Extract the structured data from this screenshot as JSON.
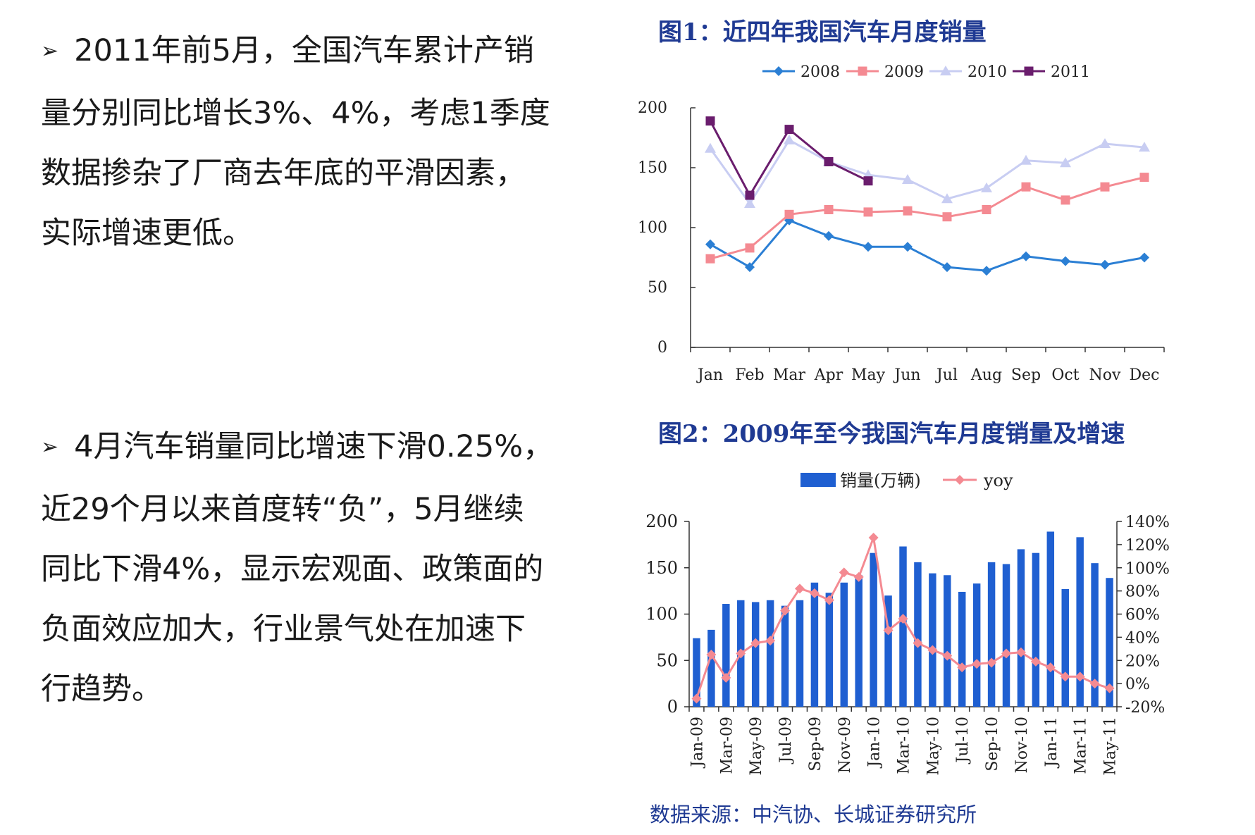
{
  "bullets": [
    {
      "mark": "➢",
      "lines": [
        "2011年前5月，全国汽车累计产销",
        "量分别同比增长3%、4%，考虑1季度",
        "数据掺杂了厂商去年底的平滑因素，",
        "实际增速更低。"
      ]
    },
    {
      "mark": "➢",
      "lines": [
        "4月汽车销量同比增速下滑0.25%，",
        "近29个月以来首度转“负”，5月继续",
        "同比下滑4%，显示宏观面、政策面的",
        "负面效应加大，行业景气处在加速下",
        "行趋势。"
      ]
    }
  ],
  "source_note": "数据来源：中汽协、长城证券研究所",
  "chart_data": [
    {
      "type": "line",
      "title": "图1：近四年我国汽车月度销量",
      "categories": [
        "Jan",
        "Feb",
        "Mar",
        "Apr",
        "May",
        "Jun",
        "Jul",
        "Aug",
        "Sep",
        "Oct",
        "Nov",
        "Dec"
      ],
      "ylim": [
        0,
        200
      ],
      "yticks": [
        0,
        50,
        100,
        150,
        200
      ],
      "legend_position": "top",
      "grid": false,
      "series": [
        {
          "name": "2008",
          "color": "#2b7fd4",
          "marker": "diamond",
          "values": [
            86,
            67,
            106,
            93,
            84,
            84,
            67,
            64,
            76,
            72,
            69,
            75
          ]
        },
        {
          "name": "2009",
          "color": "#f48a92",
          "marker": "square",
          "values": [
            74,
            83,
            111,
            115,
            113,
            114,
            109,
            115,
            134,
            123,
            134,
            142
          ]
        },
        {
          "name": "2010",
          "color": "#c8cdf2",
          "marker": "triangle",
          "values": [
            166,
            120,
            173,
            155,
            144,
            140,
            124,
            133,
            156,
            154,
            170,
            167
          ]
        },
        {
          "name": "2011",
          "color": "#6a1d6d",
          "marker": "square",
          "values": [
            189,
            127,
            182,
            155,
            139,
            null,
            null,
            null,
            null,
            null,
            null,
            null
          ]
        }
      ]
    },
    {
      "type": "bar",
      "title": "图2：2009年至今我国汽车月度销量及增速",
      "categories": [
        "Jan-09",
        "Feb-09",
        "Mar-09",
        "Apr-09",
        "May-09",
        "Jun-09",
        "Jul-09",
        "Aug-09",
        "Sep-09",
        "Oct-09",
        "Nov-09",
        "Dec-09",
        "Jan-10",
        "Feb-10",
        "Mar-10",
        "Apr-10",
        "May-10",
        "Jun-10",
        "Jul-10",
        "Aug-10",
        "Sep-10",
        "Oct-10",
        "Nov-10",
        "Dec-10",
        "Jan-11",
        "Feb-11",
        "Mar-11",
        "Apr-11",
        "May-11"
      ],
      "tick_labels": [
        "Jan-09",
        "Mar-09",
        "May-09",
        "Jul-09",
        "Sep-09",
        "Nov-09",
        "Jan-10",
        "Mar-10",
        "May-10",
        "Jul-10",
        "Sep-10",
        "Nov-10",
        "Jan-11",
        "Mar-11",
        "May-11"
      ],
      "ylim_left": [
        0,
        200
      ],
      "yticks_left": [
        0,
        50,
        100,
        150,
        200
      ],
      "ylim_right": [
        -20,
        140
      ],
      "yticks_right": [
        "-20%",
        "0%",
        "20%",
        "40%",
        "60%",
        "80%",
        "100%",
        "120%",
        "140%"
      ],
      "yticks_right_values": [
        -20,
        0,
        20,
        40,
        60,
        80,
        100,
        120,
        140
      ],
      "legend_position": "top",
      "series": [
        {
          "name": "销量(万辆)",
          "kind": "bar",
          "axis": "left",
          "color": "#1f5fd1",
          "values": [
            74,
            83,
            111,
            115,
            113,
            115,
            109,
            115,
            134,
            123,
            134,
            142,
            166,
            120,
            173,
            156,
            144,
            142,
            124,
            133,
            156,
            154,
            170,
            166,
            189,
            127,
            183,
            155,
            139
          ]
        },
        {
          "name": "yoy",
          "kind": "line",
          "axis": "right",
          "color": "#f48a92",
          "values": [
            -13,
            25,
            5,
            26,
            35,
            37,
            63,
            82,
            78,
            72,
            96,
            92,
            126,
            46,
            56,
            35,
            29,
            24,
            14,
            17,
            18,
            26,
            27,
            19,
            14,
            6,
            6,
            0,
            -4
          ]
        }
      ]
    }
  ]
}
